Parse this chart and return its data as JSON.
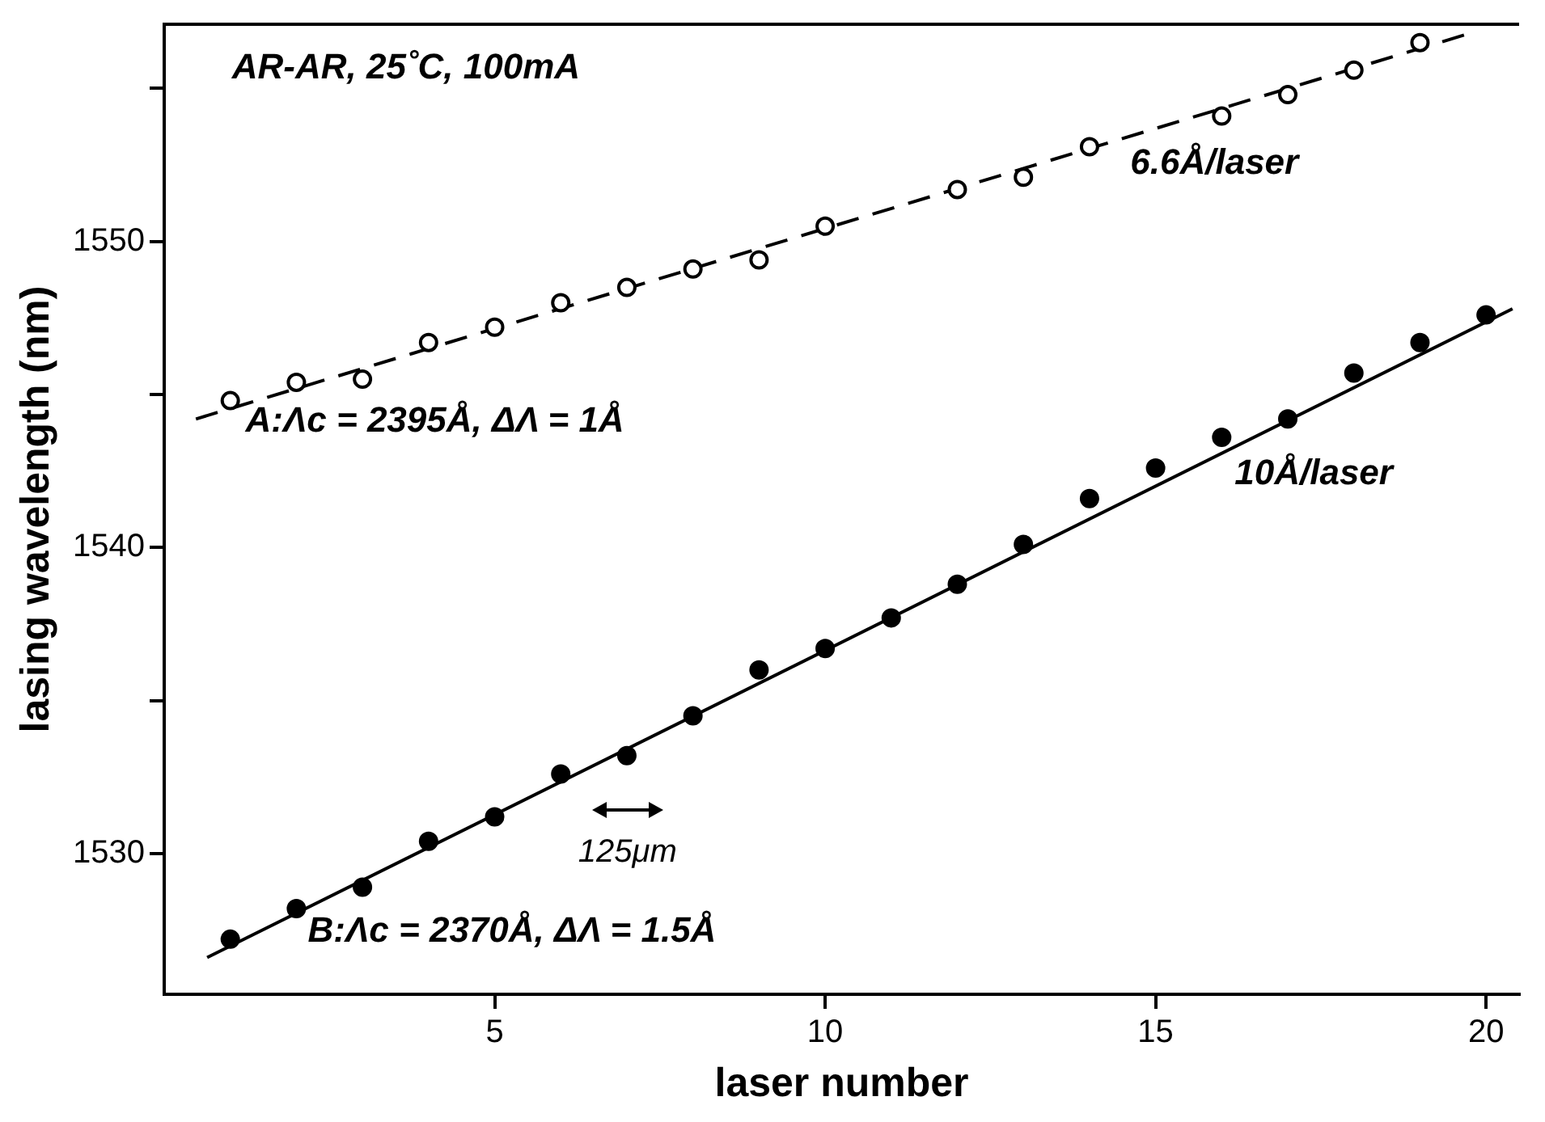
{
  "chart_data": {
    "type": "scatter",
    "xlabel": "laser number",
    "ylabel": "lasing wavelength (nm)",
    "xlim": [
      0,
      20.5
    ],
    "ylim": [
      1525.4,
      1557.1
    ],
    "xticks": [
      5,
      10,
      15,
      20
    ],
    "yticks": [
      1530,
      {
        "value": 1535,
        "label": null
      },
      1540,
      {
        "value": 1545,
        "label": null
      },
      1550,
      {
        "value": 1555,
        "label": null
      }
    ],
    "grid": false,
    "legend": false,
    "marker": "circle",
    "series": [
      {
        "color": "#000000",
        "x": [
          1,
          2,
          3,
          4,
          5,
          6,
          7,
          8,
          9,
          10,
          12,
          13,
          14,
          16,
          17,
          18,
          19
        ],
        "values": [
          1544.8,
          1545.4,
          1545.5,
          1546.7,
          1547.2,
          1548.0,
          1548.5,
          1549.1,
          1549.4,
          1550.5,
          1551.7,
          1552.1,
          1553.1,
          1554.1,
          1554.8,
          1555.6,
          1556.5
        ]
      },
      {
        "color": "#000000",
        "x": [
          1,
          2,
          3,
          4,
          5,
          6,
          7,
          8,
          9,
          10,
          11,
          12,
          13,
          14,
          15,
          16,
          17,
          18,
          19,
          20
        ],
        "values": [
          1527.2,
          1528.2,
          1528.9,
          1530.4,
          1531.2,
          1532.6,
          1533.2,
          1534.5,
          1536.0,
          1536.7,
          1537.7,
          1538.8,
          1540.1,
          1541.6,
          1542.6,
          1543.6,
          1544.2,
          1545.7,
          1546.7,
          1547.6
        ]
      },
      {
        "type": "line",
        "color": "#000000",
        "marker": "none",
        "line_style": "dashed",
        "x": [
          0.48,
          19.75
        ],
        "values": [
          1544.2,
          1556.8
        ]
      },
      {
        "type": "line",
        "color": "#000000",
        "marker": "none",
        "line_style": "solid",
        "x": [
          0.65,
          20.4
        ],
        "values": [
          1526.6,
          1547.8
        ]
      }
    ],
    "annotations": [
      "AR-AR, 25˚C, 100mA",
      "A:Λc = 2395Å, ΔΛ = 1Å",
      "6.6Å/laser",
      "10Å/laser",
      "125μm",
      "B:Λc = 2370Å, ΔΛ = 1.5Å"
    ]
  }
}
